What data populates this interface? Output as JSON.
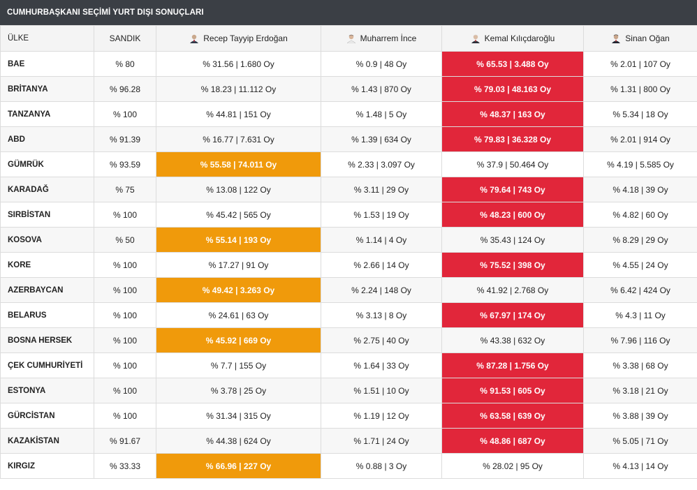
{
  "header": {
    "title": "CUMHURBAŞKANI SEÇİMİ YURT DIŞI SONUÇLARI"
  },
  "columns": {
    "country": "ÜLKE",
    "ballot": "SANDIK",
    "candidates": [
      {
        "name": "Recep Tayyip Erdoğan",
        "icon": "erdogan-avatar-icon"
      },
      {
        "name": "Muharrem İnce",
        "icon": "ince-avatar-icon"
      },
      {
        "name": "Kemal Kılıçdaroğlu",
        "icon": "kilicdaroglu-avatar-icon"
      },
      {
        "name": "Sinan Oğan",
        "icon": "ogan-avatar-icon"
      }
    ]
  },
  "colors": {
    "red": "#e1263a",
    "orange": "#f09a0b",
    "title_bg": "#3b3f45"
  },
  "rows": [
    {
      "country": "BAE",
      "ballot": "% 80",
      "cells": [
        "% 31.56 | 1.680 Oy",
        "% 0.9 | 48 Oy",
        "% 65.53 | 3.488 Oy",
        "% 2.01 | 107 Oy"
      ],
      "winner": 2
    },
    {
      "country": "BRİTANYA",
      "ballot": "% 96.28",
      "cells": [
        "% 18.23 | 11.112 Oy",
        "% 1.43 | 870 Oy",
        "% 79.03 | 48.163 Oy",
        "% 1.31 | 800 Oy"
      ],
      "winner": 2
    },
    {
      "country": "TANZANYA",
      "ballot": "% 100",
      "cells": [
        "% 44.81 | 151 Oy",
        "% 1.48 | 5 Oy",
        "% 48.37 | 163 Oy",
        "% 5.34 | 18 Oy"
      ],
      "winner": 2
    },
    {
      "country": "ABD",
      "ballot": "% 91.39",
      "cells": [
        "% 16.77 | 7.631 Oy",
        "% 1.39 | 634 Oy",
        "% 79.83 | 36.328 Oy",
        "% 2.01 | 914 Oy"
      ],
      "winner": 2
    },
    {
      "country": "GÜMRÜK",
      "ballot": "% 93.59",
      "cells": [
        "% 55.58 | 74.011 Oy",
        "% 2.33 | 3.097 Oy",
        "% 37.9 | 50.464 Oy",
        "% 4.19 | 5.585 Oy"
      ],
      "winner": 0
    },
    {
      "country": "KARADAĞ",
      "ballot": "% 75",
      "cells": [
        "% 13.08 | 122 Oy",
        "% 3.11 | 29 Oy",
        "% 79.64 | 743 Oy",
        "% 4.18 | 39 Oy"
      ],
      "winner": 2
    },
    {
      "country": "SIRBİSTAN",
      "ballot": "% 100",
      "cells": [
        "% 45.42 | 565 Oy",
        "% 1.53 | 19 Oy",
        "% 48.23 | 600 Oy",
        "% 4.82 | 60 Oy"
      ],
      "winner": 2
    },
    {
      "country": "KOSOVA",
      "ballot": "% 50",
      "cells": [
        "% 55.14 | 193 Oy",
        "% 1.14 | 4 Oy",
        "% 35.43 | 124 Oy",
        "% 8.29 | 29 Oy"
      ],
      "winner": 0
    },
    {
      "country": "KORE",
      "ballot": "% 100",
      "cells": [
        "% 17.27 | 91 Oy",
        "% 2.66 | 14 Oy",
        "% 75.52 | 398 Oy",
        "% 4.55 | 24 Oy"
      ],
      "winner": 2
    },
    {
      "country": "AZERBAYCAN",
      "ballot": "% 100",
      "cells": [
        "% 49.42 | 3.263 Oy",
        "% 2.24 | 148 Oy",
        "% 41.92 | 2.768 Oy",
        "% 6.42 | 424 Oy"
      ],
      "winner": 0
    },
    {
      "country": "BELARUS",
      "ballot": "% 100",
      "cells": [
        "% 24.61 | 63 Oy",
        "% 3.13 | 8 Oy",
        "% 67.97 | 174 Oy",
        "% 4.3 | 11 Oy"
      ],
      "winner": 2
    },
    {
      "country": "BOSNA HERSEK",
      "ballot": "% 100",
      "cells": [
        "% 45.92 | 669 Oy",
        "% 2.75 | 40 Oy",
        "% 43.38 | 632 Oy",
        "% 7.96 | 116 Oy"
      ],
      "winner": 0
    },
    {
      "country": "ÇEK CUMHURİYETİ",
      "ballot": "% 100",
      "cells": [
        "% 7.7 | 155 Oy",
        "% 1.64 | 33 Oy",
        "% 87.28 | 1.756 Oy",
        "% 3.38 | 68 Oy"
      ],
      "winner": 2
    },
    {
      "country": "ESTONYA",
      "ballot": "% 100",
      "cells": [
        "% 3.78 | 25 Oy",
        "% 1.51 | 10 Oy",
        "% 91.53 | 605 Oy",
        "% 3.18 | 21 Oy"
      ],
      "winner": 2
    },
    {
      "country": "GÜRCİSTAN",
      "ballot": "% 100",
      "cells": [
        "% 31.34 | 315 Oy",
        "% 1.19 | 12 Oy",
        "% 63.58 | 639 Oy",
        "% 3.88 | 39 Oy"
      ],
      "winner": 2
    },
    {
      "country": "KAZAKİSTAN",
      "ballot": "% 91.67",
      "cells": [
        "% 44.38 | 624 Oy",
        "% 1.71 | 24 Oy",
        "% 48.86 | 687 Oy",
        "% 5.05 | 71 Oy"
      ],
      "winner": 2
    },
    {
      "country": "KIRGIZ",
      "ballot": "% 33.33",
      "cells": [
        "% 66.96 | 227 Oy",
        "% 0.88 | 3 Oy",
        "% 28.02 | 95 Oy",
        "% 4.13 | 14 Oy"
      ],
      "winner": 0
    }
  ]
}
